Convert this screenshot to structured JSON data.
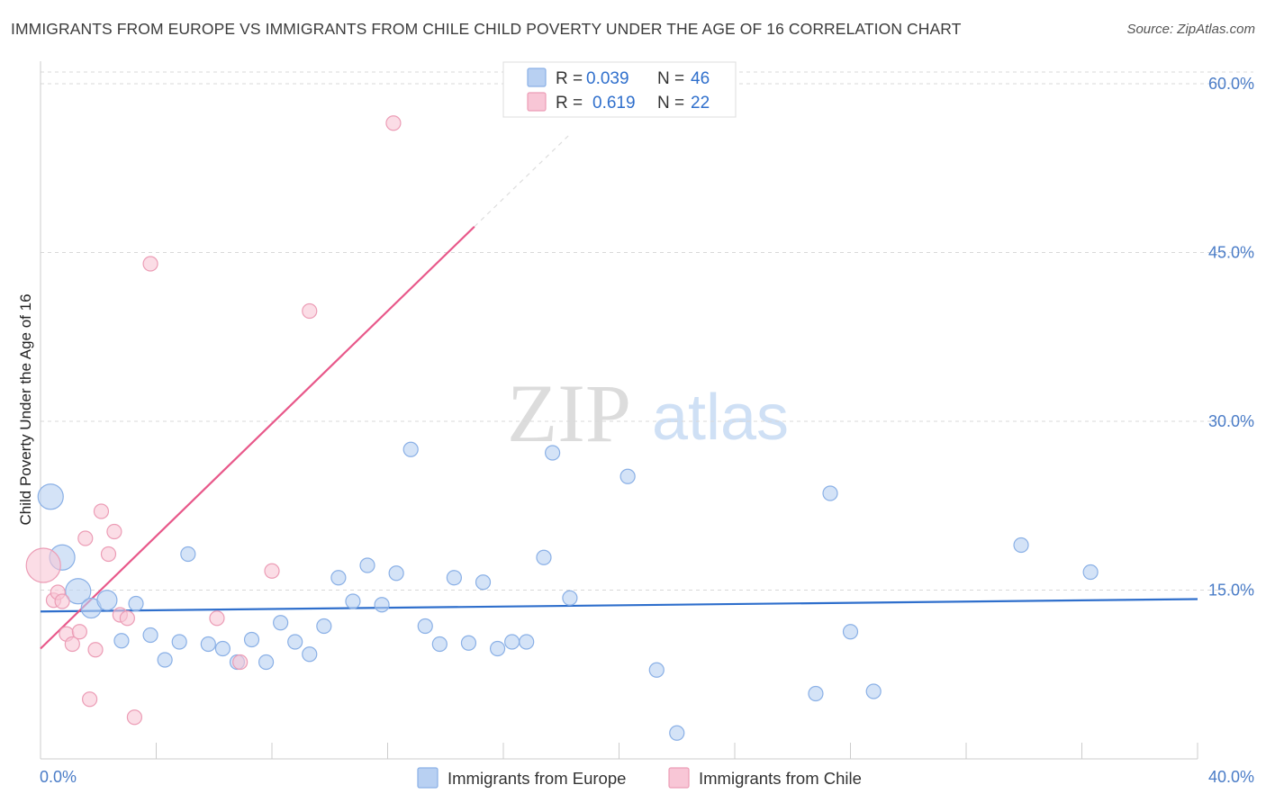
{
  "header": {
    "title": "IMMIGRANTS FROM EUROPE VS IMMIGRANTS FROM CHILE CHILD POVERTY UNDER THE AGE OF 16 CORRELATION CHART",
    "source": "Source: ZipAtlas.com"
  },
  "watermark": {
    "zip": "ZIP",
    "atlas": "atlas"
  },
  "legend_top": {
    "europe": {
      "r_label": "R =",
      "r_value": "0.039",
      "n_label": "N =",
      "n_value": "46"
    },
    "chile": {
      "r_label": "R =",
      "r_value": "0.619",
      "n_label": "N =",
      "n_value": "22"
    }
  },
  "colors": {
    "europe_fill": "#b8d0f2",
    "europe_stroke": "#8ab0e6",
    "europe_line": "#2f6fcc",
    "chile_fill": "#f8c6d6",
    "chile_stroke": "#ec9db6",
    "chile_line": "#e8588a",
    "tick_text": "#4a7cc7",
    "grid": "#d9d9d9"
  },
  "chart_data": {
    "type": "scatter",
    "title": "IMMIGRANTS FROM EUROPE VS IMMIGRANTS FROM CHILE CHILD POVERTY UNDER THE AGE OF 16 CORRELATION CHART",
    "xlabel": "",
    "ylabel": "Child Poverty Under the Age of 16",
    "xlim": [
      0,
      40
    ],
    "ylim": [
      0,
      62
    ],
    "x_tick_labels": [
      "0.0%",
      "40.0%"
    ],
    "y_ticks": [
      15,
      30,
      45,
      60
    ],
    "y_tick_labels": [
      "15.0%",
      "30.0%",
      "45.0%",
      "60.0%"
    ],
    "grid": true,
    "legend_position": "top-center",
    "series": [
      {
        "name": "Immigrants from Europe",
        "r": 0.039,
        "n": 46,
        "trend": {
          "x": [
            0,
            40
          ],
          "y": [
            13.1,
            14.2
          ]
        },
        "points": [
          {
            "x": 0.35,
            "y": 23.3,
            "s": 3
          },
          {
            "x": 0.75,
            "y": 17.9,
            "s": 3
          },
          {
            "x": 1.3,
            "y": 14.9,
            "s": 3
          },
          {
            "x": 1.75,
            "y": 13.4,
            "s": 2
          },
          {
            "x": 2.3,
            "y": 14.1,
            "s": 2
          },
          {
            "x": 3.3,
            "y": 13.8,
            "s": 1
          },
          {
            "x": 2.8,
            "y": 10.5,
            "s": 1
          },
          {
            "x": 3.8,
            "y": 11.0,
            "s": 1
          },
          {
            "x": 4.3,
            "y": 8.8,
            "s": 1
          },
          {
            "x": 5.1,
            "y": 18.2,
            "s": 1
          },
          {
            "x": 4.8,
            "y": 10.4,
            "s": 1
          },
          {
            "x": 5.8,
            "y": 10.2,
            "s": 1
          },
          {
            "x": 6.3,
            "y": 9.8,
            "s": 1
          },
          {
            "x": 6.8,
            "y": 8.6,
            "s": 1
          },
          {
            "x": 7.3,
            "y": 10.6,
            "s": 1
          },
          {
            "x": 7.8,
            "y": 8.6,
            "s": 1
          },
          {
            "x": 8.3,
            "y": 12.1,
            "s": 1
          },
          {
            "x": 8.8,
            "y": 10.4,
            "s": 1
          },
          {
            "x": 9.3,
            "y": 9.3,
            "s": 1
          },
          {
            "x": 9.8,
            "y": 11.8,
            "s": 1
          },
          {
            "x": 10.3,
            "y": 16.1,
            "s": 1
          },
          {
            "x": 10.8,
            "y": 14.0,
            "s": 1
          },
          {
            "x": 11.3,
            "y": 17.2,
            "s": 1
          },
          {
            "x": 11.8,
            "y": 13.7,
            "s": 1
          },
          {
            "x": 12.3,
            "y": 16.5,
            "s": 1
          },
          {
            "x": 12.8,
            "y": 27.5,
            "s": 1
          },
          {
            "x": 13.3,
            "y": 11.8,
            "s": 1
          },
          {
            "x": 13.8,
            "y": 10.2,
            "s": 1
          },
          {
            "x": 14.3,
            "y": 16.1,
            "s": 1
          },
          {
            "x": 14.8,
            "y": 10.3,
            "s": 1
          },
          {
            "x": 15.3,
            "y": 15.7,
            "s": 1
          },
          {
            "x": 15.8,
            "y": 9.8,
            "s": 1
          },
          {
            "x": 16.3,
            "y": 10.4,
            "s": 1
          },
          {
            "x": 16.8,
            "y": 10.4,
            "s": 1
          },
          {
            "x": 17.4,
            "y": 17.9,
            "s": 1
          },
          {
            "x": 17.7,
            "y": 27.2,
            "s": 1
          },
          {
            "x": 18.3,
            "y": 14.3,
            "s": 1
          },
          {
            "x": 20.3,
            "y": 25.1,
            "s": 1
          },
          {
            "x": 21.3,
            "y": 7.9,
            "s": 1
          },
          {
            "x": 22.0,
            "y": 2.3,
            "s": 1
          },
          {
            "x": 26.8,
            "y": 5.8,
            "s": 1
          },
          {
            "x": 27.3,
            "y": 23.6,
            "s": 1
          },
          {
            "x": 28.0,
            "y": 11.3,
            "s": 1
          },
          {
            "x": 28.8,
            "y": 6.0,
            "s": 1
          },
          {
            "x": 33.9,
            "y": 19.0,
            "s": 1
          },
          {
            "x": 36.3,
            "y": 16.6,
            "s": 1
          }
        ]
      },
      {
        "name": "Immigrants from Chile",
        "r": 0.619,
        "n": 22,
        "trend": {
          "x": [
            0,
            15
          ],
          "y": [
            9.8,
            47.3
          ]
        },
        "trend_dashed": {
          "x": [
            15,
            18.3
          ],
          "y": [
            47.3,
            55.5
          ]
        },
        "points": [
          {
            "x": 0.1,
            "y": 17.2,
            "s": 3
          },
          {
            "x": 0.45,
            "y": 14.1,
            "s": 1
          },
          {
            "x": 0.6,
            "y": 14.8,
            "s": 1
          },
          {
            "x": 0.75,
            "y": 14.0,
            "s": 1
          },
          {
            "x": 0.9,
            "y": 11.1,
            "s": 1
          },
          {
            "x": 1.1,
            "y": 10.2,
            "s": 1
          },
          {
            "x": 1.35,
            "y": 11.3,
            "s": 1
          },
          {
            "x": 1.55,
            "y": 19.6,
            "s": 1
          },
          {
            "x": 1.7,
            "y": 5.3,
            "s": 1
          },
          {
            "x": 1.9,
            "y": 9.7,
            "s": 1
          },
          {
            "x": 2.1,
            "y": 22.0,
            "s": 1
          },
          {
            "x": 2.35,
            "y": 18.2,
            "s": 1
          },
          {
            "x": 2.55,
            "y": 20.2,
            "s": 1
          },
          {
            "x": 2.75,
            "y": 12.8,
            "s": 1
          },
          {
            "x": 3.0,
            "y": 12.5,
            "s": 1
          },
          {
            "x": 3.25,
            "y": 3.7,
            "s": 1
          },
          {
            "x": 3.8,
            "y": 44.0,
            "s": 1
          },
          {
            "x": 6.1,
            "y": 12.5,
            "s": 1
          },
          {
            "x": 6.9,
            "y": 8.6,
            "s": 1
          },
          {
            "x": 8.0,
            "y": 16.7,
            "s": 1
          },
          {
            "x": 9.3,
            "y": 39.8,
            "s": 1
          },
          {
            "x": 12.2,
            "y": 56.5,
            "s": 1
          }
        ]
      }
    ]
  },
  "legend_bottom": {
    "europe_label": "Immigrants from Europe",
    "chile_label": "Immigrants from Chile"
  }
}
